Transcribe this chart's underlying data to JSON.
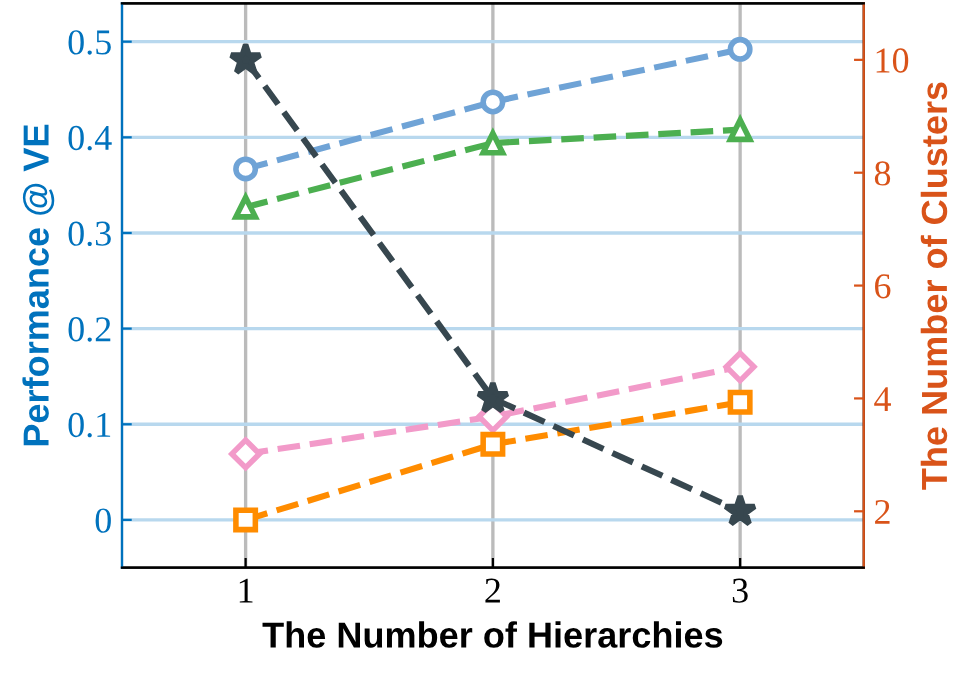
{
  "chart_data": {
    "type": "line",
    "xlabel": "The Number of Hierarchies",
    "ylabel": "Performance @ VE",
    "y2label": "The Number of Clusters",
    "x": [
      1,
      2,
      3
    ],
    "xlim": [
      0.5,
      3.5
    ],
    "xticks": [
      1,
      2,
      3
    ],
    "ylim": [
      -0.05,
      0.54
    ],
    "yticks": [
      0,
      0.1,
      0.2,
      0.3,
      0.4,
      0.5
    ],
    "y2lim": [
      1,
      11
    ],
    "y2ticks": [
      2,
      4,
      6,
      8,
      10
    ],
    "grid": true,
    "line_style": "dashed",
    "series": [
      {
        "color": "#6fa3d6",
        "marker": "circle",
        "values": [
          0.367,
          0.437,
          0.492
        ]
      },
      {
        "color": "#4caf50",
        "marker": "triangle",
        "values": [
          0.327,
          0.394,
          0.408
        ]
      },
      {
        "color": "#f29ac9",
        "marker": "diamond",
        "values": [
          0.069,
          0.108,
          0.16
        ]
      },
      {
        "color": "#ff8c00",
        "marker": "square",
        "values": [
          0.0,
          0.079,
          0.123
        ]
      },
      {
        "color": "#37474f",
        "marker": "star",
        "axis": "y2",
        "values": [
          10,
          4,
          2
        ]
      }
    ]
  }
}
